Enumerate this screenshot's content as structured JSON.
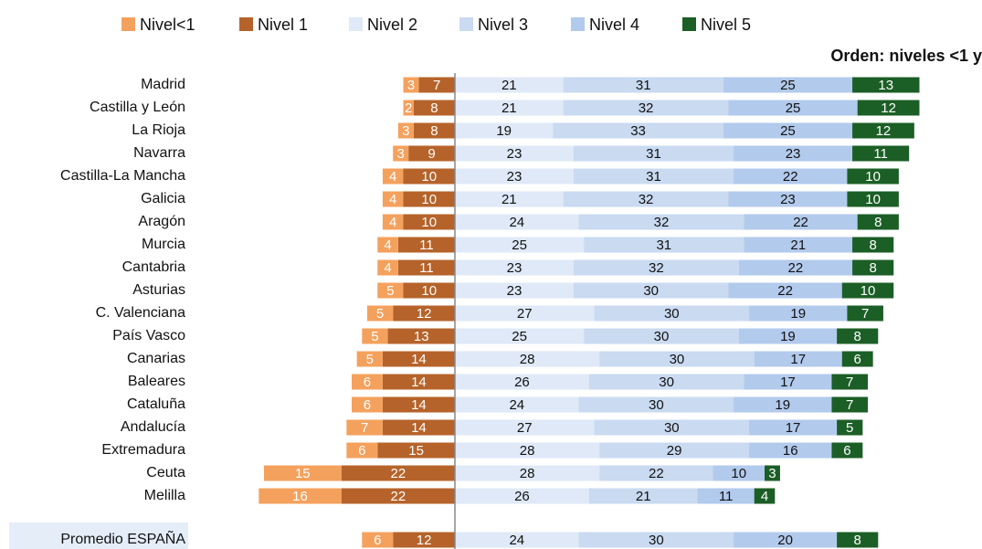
{
  "chart_data": {
    "type": "diverging-stacked-bar",
    "title": "Orden: niveles <1 y",
    "categories": [
      "Madrid",
      "Castilla y León",
      "La Rioja",
      "Navarra",
      "Castilla-La Mancha",
      "Galicia",
      "Aragón",
      "Murcia",
      "Cantabria",
      "Asturias",
      "C. Valenciana",
      "País Vasco",
      "Canarias",
      "Baleares",
      "Cataluña",
      "Andalucía",
      "Extremadura",
      "Ceuta",
      "Melilla",
      "Promedio  ESPAÑA"
    ],
    "series": [
      {
        "name": "Nivel<1",
        "color": "#f4a15d",
        "values": [
          3,
          2,
          3,
          3,
          4,
          4,
          4,
          4,
          4,
          5,
          5,
          5,
          5,
          6,
          6,
          7,
          6,
          15,
          16,
          6
        ]
      },
      {
        "name": "Nivel 1",
        "color": "#b5632a",
        "values": [
          7,
          8,
          8,
          9,
          10,
          10,
          10,
          11,
          11,
          10,
          12,
          13,
          14,
          14,
          14,
          14,
          15,
          22,
          22,
          12
        ]
      },
      {
        "name": "Nivel 2",
        "color": "#dfe9f7",
        "values": [
          21,
          21,
          19,
          23,
          23,
          21,
          24,
          25,
          23,
          23,
          27,
          25,
          28,
          26,
          24,
          27,
          28,
          28,
          26,
          24
        ]
      },
      {
        "name": "Nivel 3",
        "color": "#c9daf1",
        "values": [
          31,
          32,
          33,
          31,
          31,
          32,
          32,
          31,
          32,
          30,
          30,
          30,
          30,
          30,
          30,
          30,
          29,
          22,
          21,
          30
        ]
      },
      {
        "name": "Nivel 4",
        "color": "#b2caec",
        "values": [
          25,
          25,
          25,
          23,
          22,
          23,
          22,
          21,
          22,
          22,
          19,
          19,
          17,
          17,
          19,
          17,
          16,
          10,
          11,
          20
        ]
      },
      {
        "name": "Nivel 5",
        "color": "#1b5e26",
        "values": [
          13,
          12,
          12,
          11,
          10,
          10,
          8,
          8,
          8,
          10,
          7,
          8,
          6,
          7,
          7,
          5,
          6,
          3,
          4,
          8
        ]
      }
    ]
  }
}
